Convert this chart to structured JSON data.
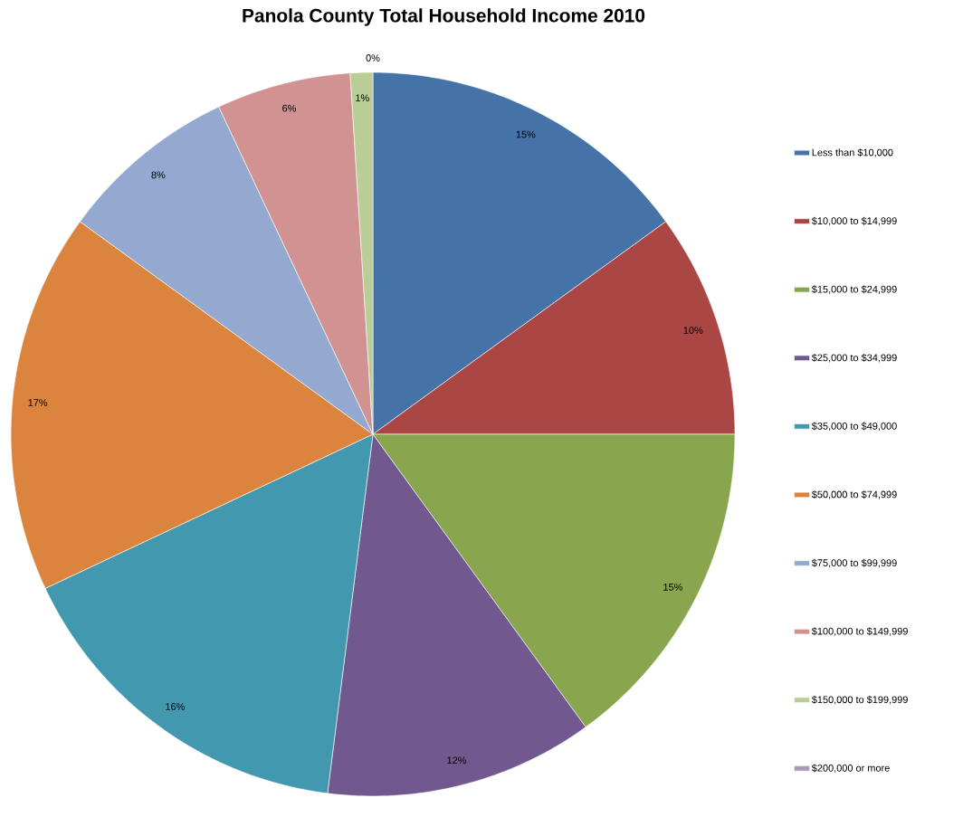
{
  "chart_data": {
    "type": "pie",
    "title": "Panola County Total Household Income 2010",
    "categories": [
      "Less than $10,000",
      "$10,000 to $14,999",
      "$15,000 to $24,999",
      "$25,000 to $34,999",
      "$35,000 to $49,000",
      "$50,000 to $74,999",
      "$75,000 to $99,999",
      "$100,000 to $149,999",
      "$150,000 to $199,999",
      "$200,000 or more"
    ],
    "values": [
      15,
      10,
      15,
      12,
      16,
      17,
      8,
      6,
      1,
      0
    ],
    "colors": [
      "#4572a7",
      "#aa4643",
      "#89a54e",
      "#71588f",
      "#4198af",
      "#db843d",
      "#93a9cf",
      "#d19392",
      "#b9cd96",
      "#a99bbd"
    ],
    "value_labels": [
      "15%",
      "10%",
      "15%",
      "12%",
      "16%",
      "17%",
      "8%",
      "6%",
      "1%",
      "0%"
    ],
    "legend": "right"
  }
}
